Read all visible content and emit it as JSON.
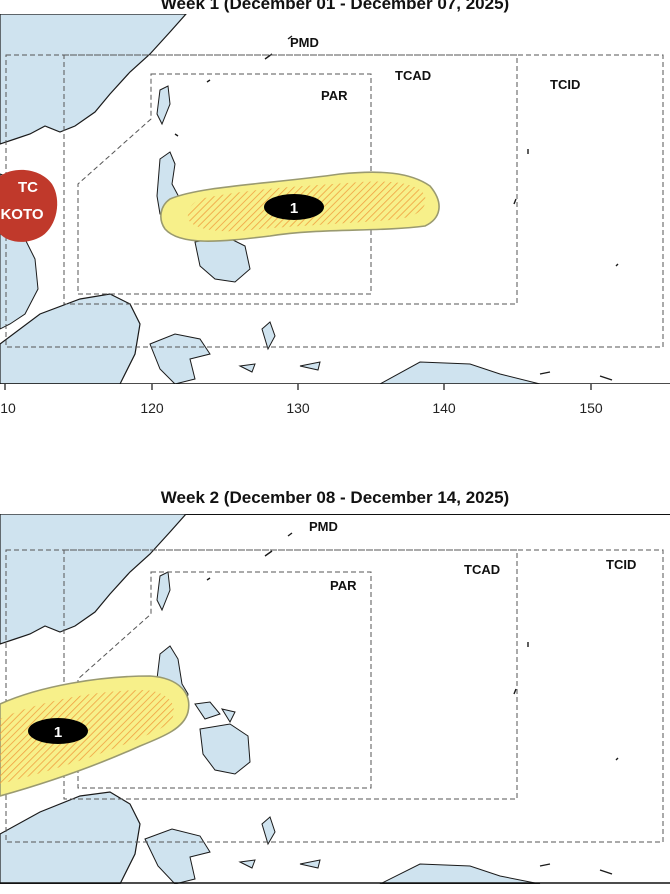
{
  "week1": {
    "title": "Week 1 (December 01 - December 07, 2025)",
    "labels": {
      "pmd": "PMD",
      "tcad": "TCAD",
      "tcid": "TCID",
      "par": "PAR"
    },
    "cluster_id": "1",
    "tc_line1": "TC",
    "tc_line2": "KOTO",
    "lon_ticks": [
      "10",
      "120",
      "130",
      "140",
      "150"
    ]
  },
  "week2": {
    "title": "Week 2 (December 08 - December 14, 2025)",
    "labels": {
      "pmd": "PMD",
      "tcad": "TCAD",
      "tcid": "TCID",
      "par": "PAR"
    },
    "cluster_id": "1"
  },
  "colors": {
    "ocean": "#ffffff",
    "land": "#cfe3ef",
    "coast": "#1a1a1a",
    "cluster_fill": "#f7f08a",
    "cluster_hatch": "#f0a040",
    "cluster_edge": "#9a9a70",
    "tc_red": "#c0392b",
    "badge": "#000000"
  }
}
